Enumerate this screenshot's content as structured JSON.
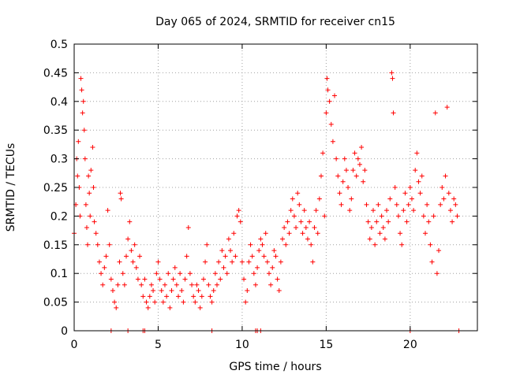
{
  "chart_data": {
    "type": "scatter",
    "title": "Day 065 of 2024, SRMTID for receiver cn15",
    "xlabel": "GPS time / hours",
    "ylabel": "SRMTID / TECUs",
    "xlim": [
      0,
      24
    ],
    "ylim": [
      0,
      0.5
    ],
    "x_ticks": [
      0,
      5,
      10,
      15,
      20
    ],
    "x_tick_labels": [
      "0",
      "5",
      "10",
      "15",
      "20"
    ],
    "y_ticks": [
      0,
      0.05,
      0.1,
      0.15,
      0.2,
      0.25,
      0.3,
      0.35,
      0.4,
      0.45,
      0.5
    ],
    "y_tick_labels": [
      "0",
      "0.05",
      "0.1",
      "0.15",
      "0.2",
      "0.25",
      "0.3",
      "0.35",
      "0.4",
      "0.45",
      "0.5"
    ],
    "grid": true,
    "marker": "plus",
    "color": "#ff0000",
    "series": [
      {
        "name": "SRMTID",
        "points": [
          [
            0.0,
            0.17
          ],
          [
            0.1,
            0.22
          ],
          [
            0.15,
            0.3
          ],
          [
            0.2,
            0.27
          ],
          [
            0.25,
            0.33
          ],
          [
            0.3,
            0.25
          ],
          [
            0.35,
            0.2
          ],
          [
            0.4,
            0.44
          ],
          [
            0.45,
            0.42
          ],
          [
            0.5,
            0.38
          ],
          [
            0.55,
            0.4
          ],
          [
            0.6,
            0.35
          ],
          [
            0.65,
            0.3
          ],
          [
            0.7,
            0.22
          ],
          [
            0.75,
            0.18
          ],
          [
            0.8,
            0.15
          ],
          [
            0.85,
            0.27
          ],
          [
            0.9,
            0.24
          ],
          [
            0.95,
            0.2
          ],
          [
            1.0,
            0.28
          ],
          [
            1.1,
            0.32
          ],
          [
            1.15,
            0.25
          ],
          [
            1.2,
            0.19
          ],
          [
            1.3,
            0.17
          ],
          [
            1.4,
            0.15
          ],
          [
            1.5,
            0.12
          ],
          [
            1.6,
            0.1
          ],
          [
            1.7,
            0.08
          ],
          [
            1.8,
            0.11
          ],
          [
            1.9,
            0.13
          ],
          [
            2.0,
            0.21
          ],
          [
            2.1,
            0.15
          ],
          [
            2.2,
            0.09
          ],
          [
            2.3,
            0.07
          ],
          [
            2.4,
            0.05
          ],
          [
            2.5,
            0.04
          ],
          [
            2.6,
            0.08
          ],
          [
            2.7,
            0.12
          ],
          [
            2.75,
            0.24
          ],
          [
            2.8,
            0.23
          ],
          [
            2.9,
            0.1
          ],
          [
            3.0,
            0.08
          ],
          [
            3.1,
            0.13
          ],
          [
            3.2,
            0.16
          ],
          [
            3.3,
            0.19
          ],
          [
            3.4,
            0.14
          ],
          [
            3.5,
            0.12
          ],
          [
            3.6,
            0.15
          ],
          [
            3.7,
            0.11
          ],
          [
            3.8,
            0.09
          ],
          [
            3.9,
            0.13
          ],
          [
            4.0,
            0.08
          ],
          [
            4.1,
            0.06
          ],
          [
            4.2,
            0.09
          ],
          [
            4.3,
            0.05
          ],
          [
            4.4,
            0.04
          ],
          [
            4.5,
            0.06
          ],
          [
            4.6,
            0.08
          ],
          [
            4.7,
            0.07
          ],
          [
            4.8,
            0.05
          ],
          [
            4.9,
            0.1
          ],
          [
            5.0,
            0.12
          ],
          [
            5.1,
            0.09
          ],
          [
            5.2,
            0.07
          ],
          [
            5.3,
            0.05
          ],
          [
            5.4,
            0.08
          ],
          [
            5.5,
            0.06
          ],
          [
            5.6,
            0.1
          ],
          [
            5.7,
            0.04
          ],
          [
            5.8,
            0.07
          ],
          [
            5.9,
            0.09
          ],
          [
            6.0,
            0.11
          ],
          [
            6.1,
            0.08
          ],
          [
            6.2,
            0.06
          ],
          [
            6.3,
            0.1
          ],
          [
            6.4,
            0.07
          ],
          [
            6.5,
            0.05
          ],
          [
            6.6,
            0.09
          ],
          [
            6.7,
            0.13
          ],
          [
            6.8,
            0.18
          ],
          [
            6.9,
            0.1
          ],
          [
            7.0,
            0.08
          ],
          [
            7.1,
            0.06
          ],
          [
            7.2,
            0.05
          ],
          [
            7.3,
            0.08
          ],
          [
            7.4,
            0.07
          ],
          [
            7.5,
            0.04
          ],
          [
            7.6,
            0.06
          ],
          [
            7.7,
            0.09
          ],
          [
            7.8,
            0.12
          ],
          [
            7.9,
            0.15
          ],
          [
            8.0,
            0.08
          ],
          [
            8.1,
            0.06
          ],
          [
            8.2,
            0.05
          ],
          [
            8.3,
            0.07
          ],
          [
            8.4,
            0.1
          ],
          [
            8.5,
            0.08
          ],
          [
            8.6,
            0.12
          ],
          [
            8.7,
            0.09
          ],
          [
            8.8,
            0.14
          ],
          [
            8.9,
            0.11
          ],
          [
            9.0,
            0.13
          ],
          [
            9.1,
            0.1
          ],
          [
            9.2,
            0.16
          ],
          [
            9.3,
            0.14
          ],
          [
            9.4,
            0.12
          ],
          [
            9.5,
            0.17
          ],
          [
            9.6,
            0.13
          ],
          [
            9.7,
            0.2
          ],
          [
            9.8,
            0.21
          ],
          [
            9.9,
            0.19
          ],
          [
            10.0,
            0.12
          ],
          [
            10.1,
            0.09
          ],
          [
            10.2,
            0.05
          ],
          [
            10.3,
            0.07
          ],
          [
            10.4,
            0.12
          ],
          [
            10.5,
            0.15
          ],
          [
            10.6,
            0.13
          ],
          [
            10.7,
            0.1
          ],
          [
            10.8,
            0.08
          ],
          [
            10.9,
            0.11
          ],
          [
            11.0,
            0.14
          ],
          [
            11.1,
            0.16
          ],
          [
            11.2,
            0.15
          ],
          [
            11.3,
            0.13
          ],
          [
            11.4,
            0.17
          ],
          [
            11.5,
            0.12
          ],
          [
            11.6,
            0.1
          ],
          [
            11.7,
            0.08
          ],
          [
            11.8,
            0.11
          ],
          [
            11.9,
            0.14
          ],
          [
            12.0,
            0.13
          ],
          [
            12.1,
            0.09
          ],
          [
            12.2,
            0.07
          ],
          [
            12.3,
            0.12
          ],
          [
            12.4,
            0.16
          ],
          [
            12.5,
            0.18
          ],
          [
            12.6,
            0.15
          ],
          [
            12.7,
            0.19
          ],
          [
            12.8,
            0.17
          ],
          [
            12.9,
            0.21
          ],
          [
            13.0,
            0.23
          ],
          [
            13.1,
            0.2
          ],
          [
            13.2,
            0.18
          ],
          [
            13.3,
            0.24
          ],
          [
            13.4,
            0.22
          ],
          [
            13.5,
            0.19
          ],
          [
            13.6,
            0.17
          ],
          [
            13.7,
            0.21
          ],
          [
            13.8,
            0.18
          ],
          [
            13.9,
            0.16
          ],
          [
            14.0,
            0.19
          ],
          [
            14.1,
            0.15
          ],
          [
            14.2,
            0.12
          ],
          [
            14.3,
            0.18
          ],
          [
            14.4,
            0.21
          ],
          [
            14.5,
            0.17
          ],
          [
            14.6,
            0.23
          ],
          [
            14.7,
            0.27
          ],
          [
            14.8,
            0.31
          ],
          [
            14.9,
            0.2
          ],
          [
            15.0,
            0.38
          ],
          [
            15.05,
            0.44
          ],
          [
            15.1,
            0.42
          ],
          [
            15.2,
            0.4
          ],
          [
            15.3,
            0.36
          ],
          [
            15.4,
            0.33
          ],
          [
            15.5,
            0.41
          ],
          [
            15.6,
            0.3
          ],
          [
            15.7,
            0.27
          ],
          [
            15.8,
            0.24
          ],
          [
            15.9,
            0.22
          ],
          [
            16.0,
            0.26
          ],
          [
            16.1,
            0.3
          ],
          [
            16.2,
            0.28
          ],
          [
            16.3,
            0.25
          ],
          [
            16.4,
            0.21
          ],
          [
            16.5,
            0.23
          ],
          [
            16.6,
            0.28
          ],
          [
            16.7,
            0.31
          ],
          [
            16.8,
            0.27
          ],
          [
            16.9,
            0.3
          ],
          [
            17.0,
            0.29
          ],
          [
            17.1,
            0.32
          ],
          [
            17.2,
            0.26
          ],
          [
            17.3,
            0.28
          ],
          [
            17.4,
            0.22
          ],
          [
            17.5,
            0.19
          ],
          [
            17.6,
            0.16
          ],
          [
            17.7,
            0.18
          ],
          [
            17.8,
            0.21
          ],
          [
            17.9,
            0.15
          ],
          [
            18.0,
            0.19
          ],
          [
            18.1,
            0.22
          ],
          [
            18.2,
            0.17
          ],
          [
            18.3,
            0.2
          ],
          [
            18.4,
            0.18
          ],
          [
            18.5,
            0.16
          ],
          [
            18.6,
            0.21
          ],
          [
            18.7,
            0.19
          ],
          [
            18.8,
            0.23
          ],
          [
            18.9,
            0.45
          ],
          [
            18.95,
            0.44
          ],
          [
            19.0,
            0.38
          ],
          [
            19.1,
            0.25
          ],
          [
            19.2,
            0.22
          ],
          [
            19.3,
            0.2
          ],
          [
            19.4,
            0.17
          ],
          [
            19.5,
            0.15
          ],
          [
            19.6,
            0.21
          ],
          [
            19.7,
            0.24
          ],
          [
            19.8,
            0.19
          ],
          [
            19.9,
            0.22
          ],
          [
            20.0,
            0.25
          ],
          [
            20.1,
            0.23
          ],
          [
            20.2,
            0.21
          ],
          [
            20.3,
            0.28
          ],
          [
            20.4,
            0.31
          ],
          [
            20.5,
            0.26
          ],
          [
            20.6,
            0.24
          ],
          [
            20.7,
            0.27
          ],
          [
            20.8,
            0.2
          ],
          [
            20.9,
            0.17
          ],
          [
            21.0,
            0.22
          ],
          [
            21.1,
            0.19
          ],
          [
            21.2,
            0.15
          ],
          [
            21.3,
            0.12
          ],
          [
            21.4,
            0.2
          ],
          [
            21.5,
            0.38
          ],
          [
            21.6,
            0.1
          ],
          [
            21.7,
            0.14
          ],
          [
            21.8,
            0.22
          ],
          [
            21.9,
            0.25
          ],
          [
            22.0,
            0.23
          ],
          [
            22.1,
            0.27
          ],
          [
            22.2,
            0.39
          ],
          [
            22.3,
            0.24
          ],
          [
            22.4,
            0.21
          ],
          [
            22.5,
            0.19
          ],
          [
            22.6,
            0.23
          ],
          [
            22.7,
            0.22
          ],
          [
            22.8,
            0.2
          ],
          [
            2.2,
            0.0
          ],
          [
            3.2,
            0.0
          ],
          [
            4.1,
            0.0
          ],
          [
            4.2,
            0.0
          ],
          [
            8.2,
            0.0
          ],
          [
            10.8,
            0.0
          ],
          [
            10.9,
            0.0
          ],
          [
            11.1,
            0.0
          ],
          [
            20.0,
            0.0
          ],
          [
            22.9,
            0.0
          ]
        ]
      }
    ]
  }
}
